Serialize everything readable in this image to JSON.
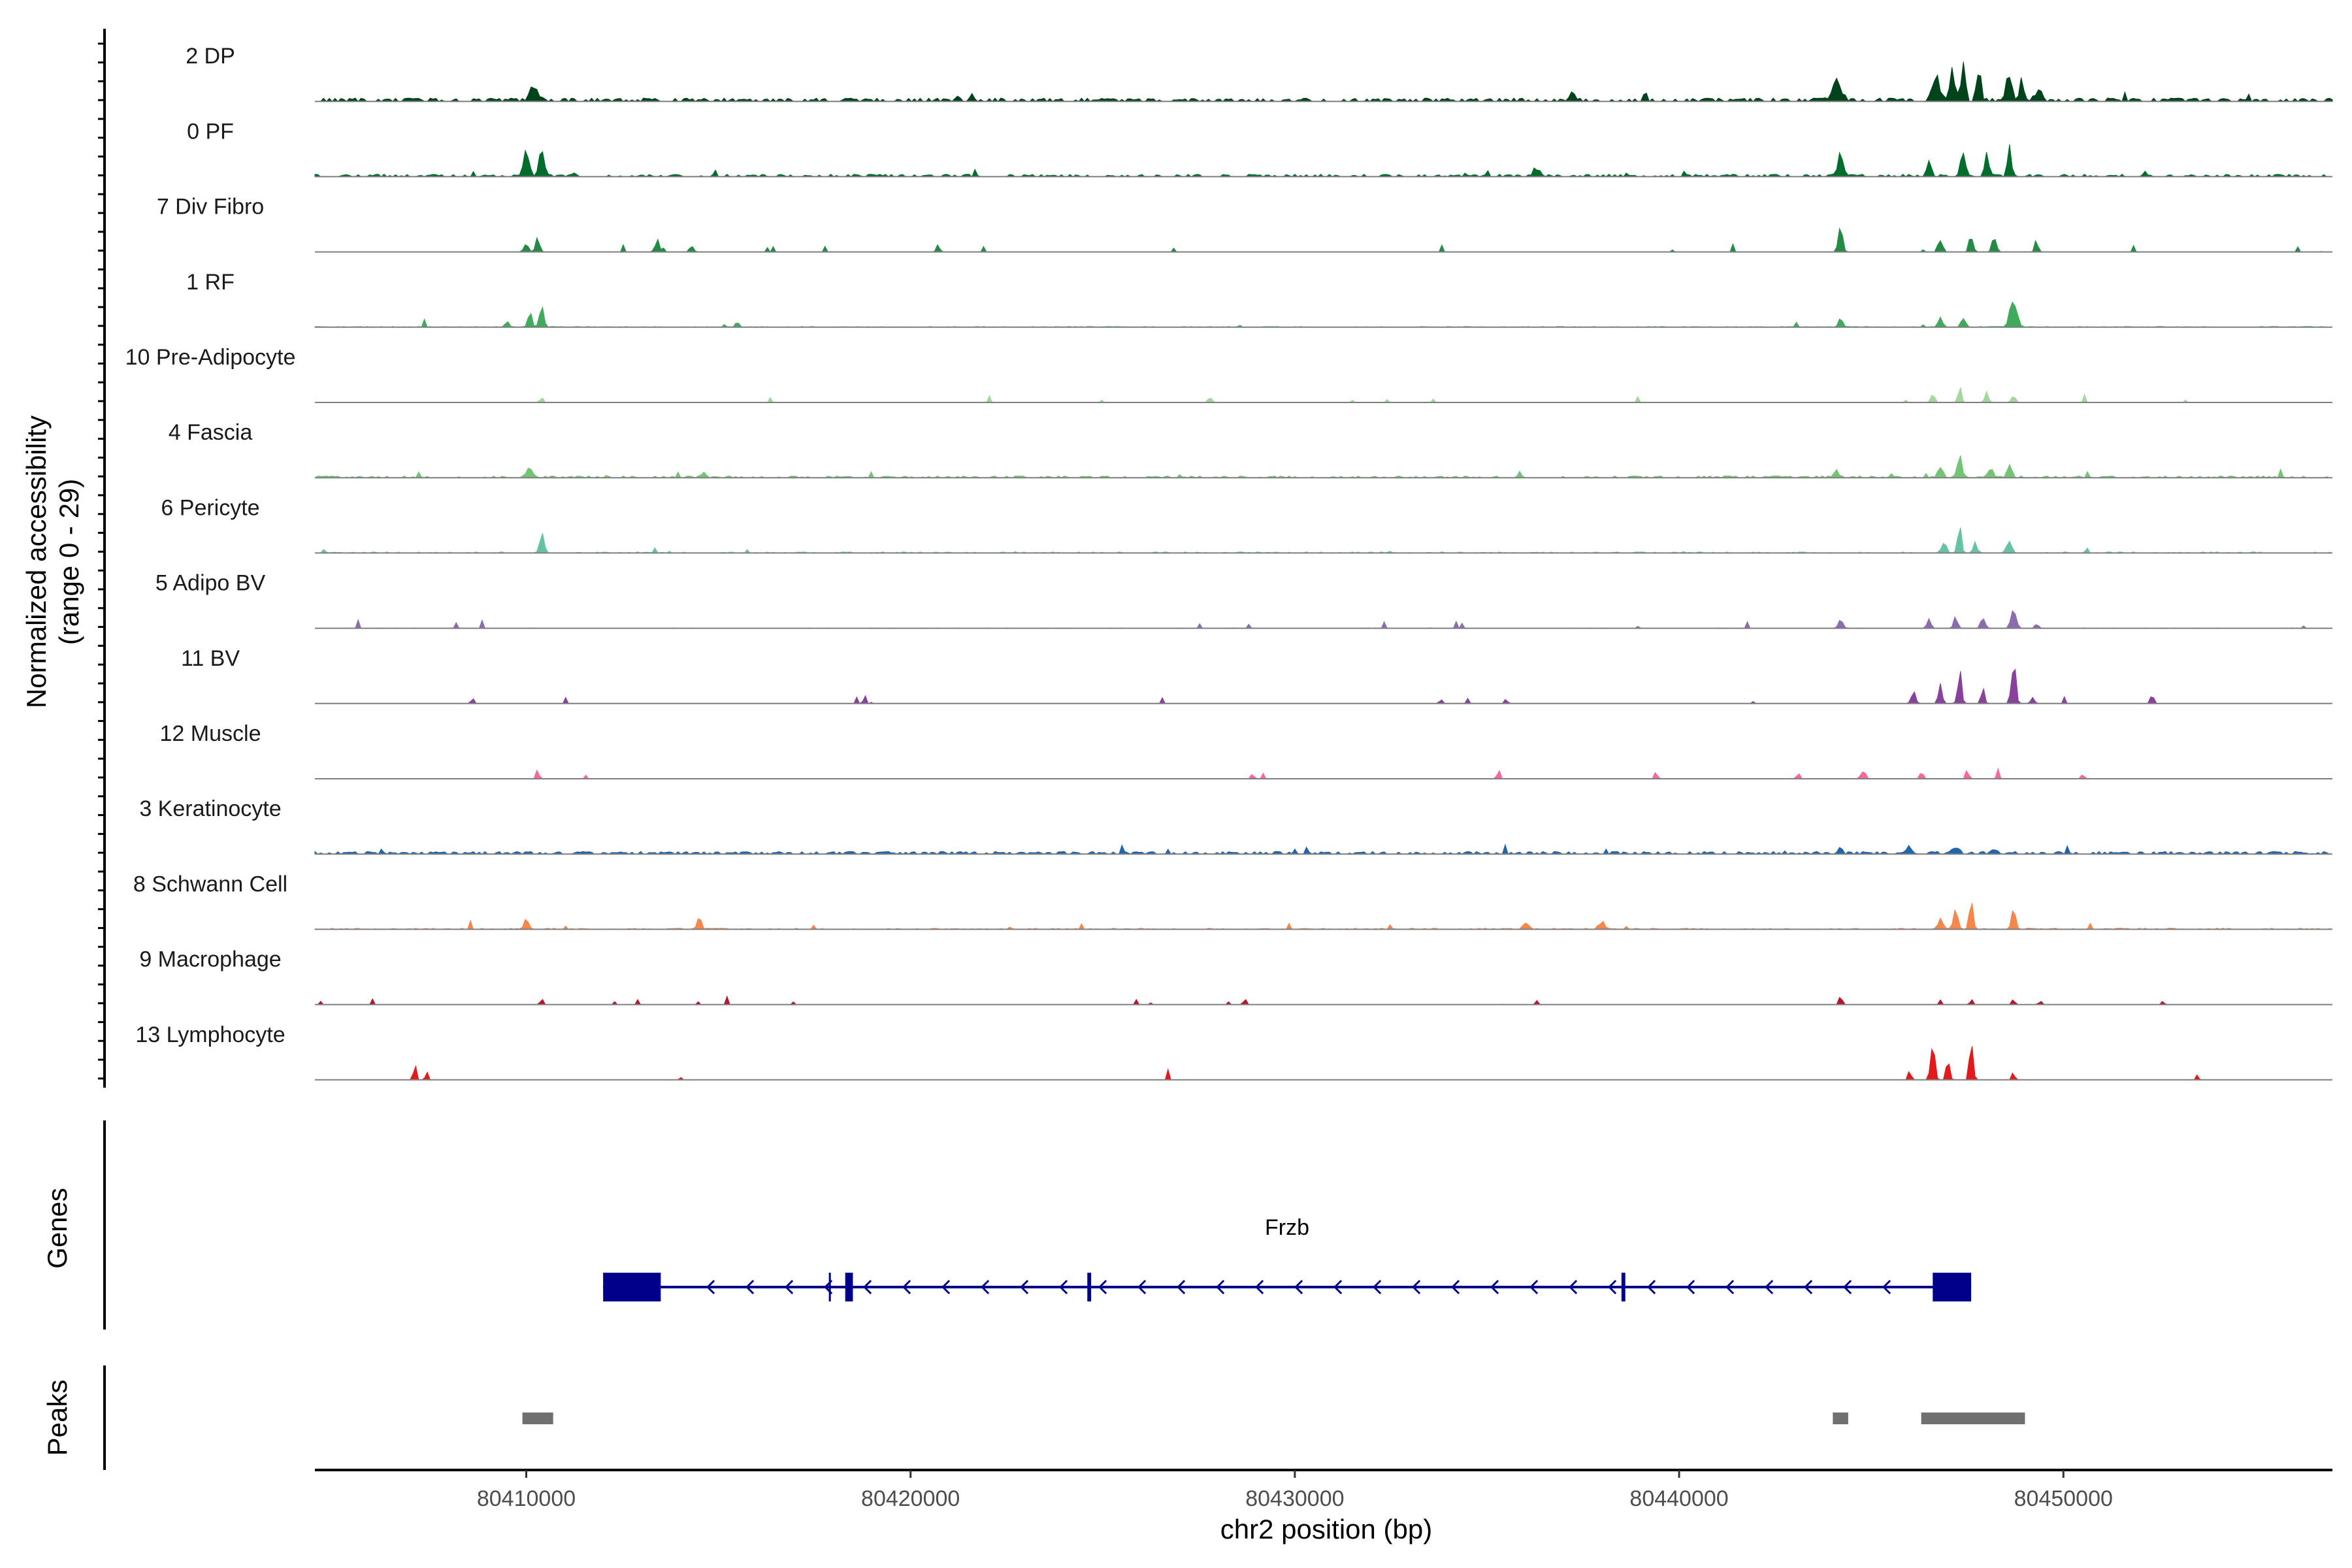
{
  "chart_data": {
    "type": "area",
    "title": "",
    "ylabel": "Normalized accessibility",
    "ylabel_range": "(range 0 - 29)",
    "ylim": [
      0,
      29
    ],
    "xlabel": "chr2 position (bp)",
    "xlim": [
      80404500,
      80457000
    ],
    "xticks": [
      80410000,
      80420000,
      80430000,
      80440000,
      80450000
    ],
    "xtick_labels": [
      "80410000",
      "80420000",
      "80430000",
      "80440000",
      "80450000"
    ],
    "tracks": [
      {
        "name": "2 DP",
        "color": "#00441b",
        "base": 0.4,
        "noise": 0.25,
        "density": 0.55,
        "peaks": [
          [
            80410200,
            180,
            5
          ],
          [
            80437200,
            120,
            3
          ],
          [
            80444100,
            220,
            6
          ],
          [
            80446700,
            180,
            8
          ],
          [
            80447100,
            120,
            10
          ],
          [
            80447400,
            90,
            16
          ],
          [
            80447800,
            100,
            12
          ],
          [
            80448600,
            130,
            10
          ],
          [
            80448900,
            90,
            8
          ],
          [
            80449300,
            150,
            3
          ]
        ]
      },
      {
        "name": "0 PF",
        "color": "#006d2c",
        "base": 0.25,
        "noise": 0.2,
        "density": 0.5,
        "peaks": [
          [
            80410000,
            140,
            8
          ],
          [
            80410400,
            120,
            9
          ],
          [
            80436300,
            150,
            3
          ],
          [
            80444200,
            120,
            8
          ],
          [
            80446500,
            100,
            6
          ],
          [
            80447400,
            90,
            9
          ],
          [
            80448000,
            100,
            7
          ],
          [
            80448600,
            90,
            12
          ]
        ]
      },
      {
        "name": "7 Div Fibro",
        "color": "#238b45",
        "base": 0.0,
        "noise": 0.0,
        "density": 0.3,
        "peaks": [
          [
            80410000,
            100,
            3
          ],
          [
            80410300,
            90,
            5
          ],
          [
            80413400,
            100,
            4
          ],
          [
            80414300,
            90,
            2
          ],
          [
            80420700,
            70,
            2
          ],
          [
            80444200,
            100,
            7
          ],
          [
            80446800,
            100,
            5
          ],
          [
            80447600,
            90,
            6
          ],
          [
            80448200,
            100,
            5
          ],
          [
            80449300,
            80,
            4
          ]
        ]
      },
      {
        "name": "1 RF",
        "color": "#41ab5d",
        "base": 0.1,
        "noise": 0.05,
        "density": 0.35,
        "peaks": [
          [
            80409500,
            100,
            2
          ],
          [
            80410100,
            90,
            4
          ],
          [
            80410400,
            100,
            8
          ],
          [
            80444200,
            90,
            3
          ],
          [
            80446800,
            100,
            3
          ],
          [
            80447400,
            90,
            4
          ],
          [
            80448700,
            150,
            11
          ]
        ]
      },
      {
        "name": "10 Pre-Adipocyte",
        "color": "#a1d99b",
        "base": 0.0,
        "noise": 0.0,
        "density": 0.28,
        "peaks": [
          [
            80410400,
            60,
            2
          ],
          [
            80427800,
            80,
            2
          ],
          [
            80446600,
            80,
            4
          ],
          [
            80447300,
            80,
            5
          ],
          [
            80448000,
            80,
            4
          ],
          [
            80448700,
            90,
            3
          ]
        ]
      },
      {
        "name": "4 Fascia",
        "color": "#74c476",
        "base": 0.2,
        "noise": 0.15,
        "density": 0.4,
        "peaks": [
          [
            80410100,
            150,
            3
          ],
          [
            80414600,
            100,
            2
          ],
          [
            80444100,
            100,
            2
          ],
          [
            80446800,
            120,
            4
          ],
          [
            80447300,
            100,
            7
          ],
          [
            80448100,
            100,
            4
          ],
          [
            80448600,
            100,
            5
          ]
        ]
      },
      {
        "name": "6 Pericyte",
        "color": "#66c2a4",
        "base": 0.1,
        "noise": 0.1,
        "density": 0.3,
        "peaks": [
          [
            80410400,
            100,
            7
          ],
          [
            80446900,
            100,
            4
          ],
          [
            80447300,
            80,
            11
          ],
          [
            80447700,
            80,
            5
          ],
          [
            80448600,
            100,
            5
          ],
          [
            80450600,
            50,
            2
          ]
        ]
      },
      {
        "name": "5 Adipo BV",
        "color": "#8c6bb1",
        "base": 0.0,
        "noise": 0.05,
        "density": 0.25,
        "peaks": [
          [
            80444200,
            100,
            3
          ],
          [
            80446500,
            90,
            3
          ],
          [
            80447200,
            90,
            4
          ],
          [
            80447900,
            100,
            4
          ],
          [
            80448700,
            120,
            6
          ],
          [
            80449300,
            80,
            2
          ]
        ]
      },
      {
        "name": "11 BV",
        "color": "#88419d",
        "base": 0.0,
        "noise": 0.0,
        "density": 0.22,
        "peaks": [
          [
            80408600,
            60,
            2
          ],
          [
            80418800,
            60,
            3
          ],
          [
            80433800,
            60,
            2
          ],
          [
            80434500,
            60,
            2
          ],
          [
            80435500,
            60,
            2
          ],
          [
            80446100,
            100,
            4
          ],
          [
            80446800,
            80,
            7
          ],
          [
            80447300,
            90,
            11
          ],
          [
            80447900,
            80,
            5
          ],
          [
            80448700,
            100,
            13
          ],
          [
            80449200,
            80,
            3
          ],
          [
            80452300,
            80,
            3
          ]
        ]
      },
      {
        "name": "12 Muscle",
        "color": "#f768a1",
        "base": 0.0,
        "noise": 0.0,
        "density": 0.3,
        "peaks": [
          [
            80410300,
            70,
            3
          ],
          [
            80428900,
            70,
            2
          ],
          [
            80435300,
            60,
            3
          ],
          [
            80439400,
            60,
            3
          ],
          [
            80443100,
            70,
            2
          ],
          [
            80444800,
            80,
            3
          ],
          [
            80446300,
            70,
            3
          ],
          [
            80447500,
            70,
            3
          ],
          [
            80448300,
            60,
            3
          ],
          [
            80450500,
            60,
            2
          ]
        ]
      },
      {
        "name": "3 Keratinocyte",
        "color": "#2166ac",
        "base": 0.3,
        "noise": 0.2,
        "density": 0.55,
        "peaks": [
          [
            80430000,
            80,
            1
          ],
          [
            80444200,
            80,
            2
          ],
          [
            80446000,
            150,
            1
          ],
          [
            80447200,
            140,
            2
          ],
          [
            80448200,
            140,
            1
          ]
        ]
      },
      {
        "name": "8 Schwann Cell",
        "color": "#f4874c",
        "base": 0.1,
        "noise": 0.1,
        "density": 0.35,
        "peaks": [
          [
            80410000,
            120,
            3
          ],
          [
            80414500,
            90,
            5
          ],
          [
            80436000,
            120,
            3
          ],
          [
            80438000,
            100,
            3
          ],
          [
            80446800,
            100,
            4
          ],
          [
            80447200,
            100,
            7
          ],
          [
            80447600,
            90,
            9
          ],
          [
            80448700,
            100,
            6
          ],
          [
            80450700,
            60,
            2
          ]
        ]
      },
      {
        "name": "9 Macrophage",
        "color": "#b2182b",
        "base": 0.0,
        "noise": 0.0,
        "density": 0.25,
        "peaks": [
          [
            80410400,
            60,
            3
          ],
          [
            80428700,
            60,
            2
          ],
          [
            80436300,
            60,
            2
          ],
          [
            80444200,
            70,
            3
          ],
          [
            80446800,
            60,
            2
          ],
          [
            80447600,
            60,
            2
          ],
          [
            80448700,
            60,
            3
          ],
          [
            80449400,
            60,
            2
          ],
          [
            80452600,
            50,
            2
          ]
        ]
      },
      {
        "name": "13 Lymphocyte",
        "color": "#e31a1c",
        "base": 0.0,
        "noise": 0.0,
        "density": 0.0,
        "peaks": [
          [
            80407100,
            60,
            5
          ],
          [
            80407400,
            50,
            4
          ],
          [
            80414000,
            40,
            2
          ],
          [
            80426700,
            40,
            3
          ],
          [
            80446000,
            60,
            4
          ],
          [
            80446600,
            100,
            10
          ],
          [
            80447000,
            80,
            7
          ],
          [
            80447600,
            80,
            13
          ],
          [
            80448700,
            50,
            4
          ],
          [
            80453500,
            40,
            3
          ]
        ]
      }
    ],
    "genes": {
      "label": "Genes",
      "name": "Frzb",
      "color": "#00008b",
      "strand": "-",
      "start": 80412000,
      "end": 80447600,
      "exons": [
        [
          80412000,
          80413500
        ],
        [
          80418300,
          80418500
        ],
        [
          80424600,
          80424700
        ],
        [
          80438500,
          80438600
        ],
        [
          80446600,
          80447600
        ]
      ]
    },
    "peaks_track": {
      "label": "Peaks",
      "color": "#707070",
      "regions": [
        [
          80409900,
          80410700
        ],
        [
          80444000,
          80444400
        ],
        [
          80446300,
          80449000
        ]
      ]
    }
  }
}
